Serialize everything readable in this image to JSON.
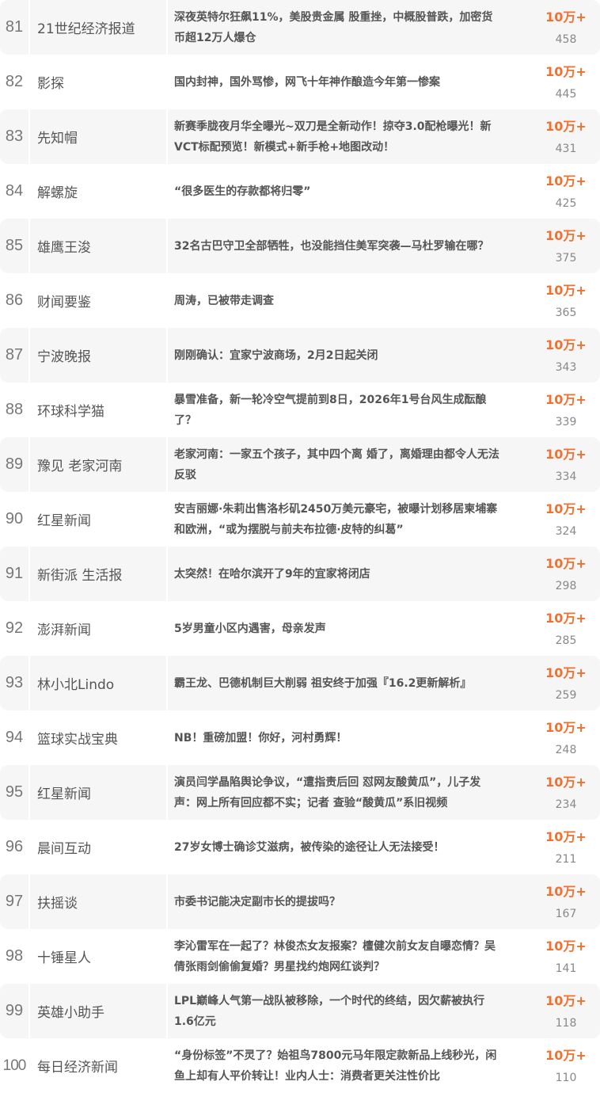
{
  "accent_color": "#f07030",
  "rows": [
    {
      "rank": "81",
      "account": "21世纪经济报道",
      "title": "深夜英特尔狂飙11%，美股贵金属 股重挫，中概股普跌，加密货币超12万人爆仓",
      "reads": "10万+",
      "likes": "458"
    },
    {
      "rank": "82",
      "account": "影探",
      "title": "国内封神，国外骂惨，网飞十年神作酿造今年第一惨案",
      "reads": "10万+",
      "likes": "445"
    },
    {
      "rank": "83",
      "account": "先知帽",
      "title": "新赛季胧夜月华全曝光~双刀是全新动作！掠夺3.0配枪曝光！新VCT标配预览！新模式+新手枪+地图改动！",
      "reads": "10万+",
      "likes": "431"
    },
    {
      "rank": "84",
      "account": "解螺旋",
      "title": "“很多医生的存款都将归零”",
      "reads": "10万+",
      "likes": "425"
    },
    {
      "rank": "85",
      "account": "雄鹰王浚",
      "title": "32名古巴守卫全部牺牲，也没能挡住美军突袭—马杜罗输在哪？",
      "reads": "10万+",
      "likes": "375"
    },
    {
      "rank": "86",
      "account": "财闻要鉴",
      "title": "周涛，已被带走调查",
      "reads": "10万+",
      "likes": "365"
    },
    {
      "rank": "87",
      "account": "宁波晚报",
      "title": "刚刚确认：宜家宁波商场，2月2日起关闭",
      "reads": "10万+",
      "likes": "343"
    },
    {
      "rank": "88",
      "account": "环球科学猫",
      "title": "暴雪准备，新一轮冷空气提前到8日，2026年1号台风生成酝酿了？",
      "reads": "10万+",
      "likes": "339"
    },
    {
      "rank": "89",
      "account": "豫见 老家河南",
      "title": "老家河南：一家五个孩子，其中四个离 婚了，离婚理由都令人无法反驳",
      "reads": "10万+",
      "likes": "334"
    },
    {
      "rank": "90",
      "account": "红星新闻",
      "title": "安吉丽娜·朱莉出售洛杉矶2450万美元豪宅，被曝计划移居柬埔寨和欧洲，“或为摆脱与前夫布拉德·皮特的纠葛”",
      "reads": "10万+",
      "likes": "324"
    },
    {
      "rank": "91",
      "account": "新街派 生活报",
      "title": "太突然！在哈尔滨开了9年的宜家将闭店",
      "reads": "10万+",
      "likes": "298"
    },
    {
      "rank": "92",
      "account": "澎湃新闻",
      "title": "5岁男童小区内遇害，母亲发声",
      "reads": "10万+",
      "likes": "285"
    },
    {
      "rank": "93",
      "account": "林小北Lindo",
      "title": "霸王龙、巴德机制巨大削弱 祖安终于加强『16.2更新解析』",
      "reads": "10万+",
      "likes": "259"
    },
    {
      "rank": "94",
      "account": "篮球实战宝典",
      "title": "NB！重磅加盟！你好，河村勇辉！",
      "reads": "10万+",
      "likes": "248"
    },
    {
      "rank": "95",
      "account": "红星新闻",
      "title": "演员闫学晶陷舆论争议，“遭指责后回 怼网友酸黄瓜”，儿子发声：网上所有回应都不实；记者 查验“酸黄瓜”系旧视频",
      "reads": "10万+",
      "likes": "234"
    },
    {
      "rank": "96",
      "account": "晨间互动",
      "title": "27岁女博士确诊艾滋病，被传染的途径让人无法接受！",
      "reads": "10万+",
      "likes": "211"
    },
    {
      "rank": "97",
      "account": "扶摇谈",
      "title": "市委书记能决定副市长的提拔吗？",
      "reads": "10万+",
      "likes": "167"
    },
    {
      "rank": "98",
      "account": "十锤星人",
      "title": "李沁雷军在一起了？林俊杰女友报案？檀健次前女友自曝恋情？吴倩张雨剑偷偷复婚？男星找约炮网红谈判？",
      "reads": "10万+",
      "likes": "141"
    },
    {
      "rank": "99",
      "account": "英雄小助手",
      "title": "LPL巅峰人气第一战队被移除，一个时代的终结，因欠薪被执行1.6亿元",
      "reads": "10万+",
      "likes": "118"
    },
    {
      "rank": "100",
      "account": "每日经济新闻",
      "title": "“身份标签”不灵了？始祖鸟7800元马年限定款新品上线秒光，闲鱼上却有人平价转让！业内人士：消费者更关注性价比",
      "reads": "10万+",
      "likes": "110"
    }
  ]
}
